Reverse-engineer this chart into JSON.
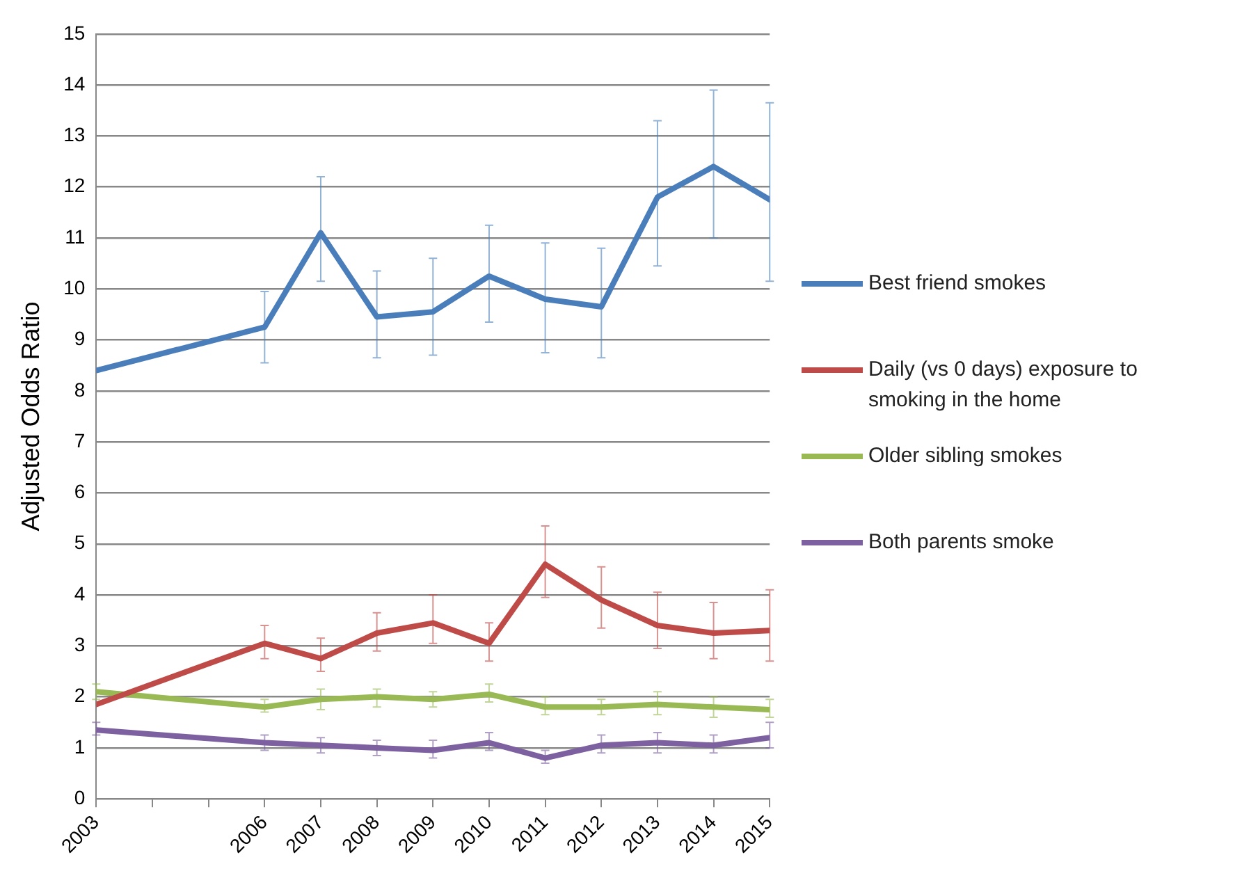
{
  "chart_data": {
    "type": "line",
    "ylabel": "Adjusted Odds Ratio",
    "x": [
      2003,
      2006,
      2007,
      2008,
      2009,
      2010,
      2011,
      2012,
      2013,
      2014,
      2015
    ],
    "xlim": [
      2003,
      2015
    ],
    "xticks": [
      2003,
      {
        "value": 2004,
        "label": null
      },
      {
        "value": 2005,
        "label": null
      },
      2006,
      2007,
      2008,
      2009,
      2010,
      2011,
      2012,
      2013,
      2014,
      2015
    ],
    "ylim": [
      0,
      15
    ],
    "yticks": [
      0,
      1,
      2,
      3,
      4,
      5,
      6,
      7,
      8,
      9,
      10,
      11,
      12,
      13,
      14,
      15
    ],
    "grid": "y",
    "legend": "right",
    "line_style": "solid",
    "series": [
      {
        "name": "Best friend smokes",
        "color": "#4a7ebb",
        "values": [
          8.4,
          9.25,
          11.1,
          9.45,
          9.55,
          10.25,
          9.8,
          9.65,
          11.8,
          12.4,
          11.75
        ],
        "errors": [
          null,
          [
            8.55,
            9.95
          ],
          [
            10.15,
            12.2
          ],
          [
            8.65,
            10.35
          ],
          [
            8.7,
            10.6
          ],
          [
            9.35,
            11.25
          ],
          [
            8.75,
            10.9
          ],
          [
            8.65,
            10.8
          ],
          [
            10.45,
            13.3
          ],
          [
            11.0,
            13.9
          ],
          [
            10.15,
            13.65
          ]
        ]
      },
      {
        "name": "Daily (vs 0 days) exposure to smoking in the home",
        "color": "#be4b48",
        "values": [
          1.85,
          3.05,
          2.75,
          3.25,
          3.45,
          3.05,
          4.6,
          3.9,
          3.4,
          3.25,
          3.3
        ],
        "errors": [
          null,
          [
            2.75,
            3.4
          ],
          [
            2.5,
            3.15
          ],
          [
            2.9,
            3.65
          ],
          [
            3.05,
            4.0
          ],
          [
            2.7,
            3.45
          ],
          [
            3.95,
            5.35
          ],
          [
            3.35,
            4.55
          ],
          [
            2.95,
            4.05
          ],
          [
            2.75,
            3.85
          ],
          [
            2.7,
            4.1
          ]
        ]
      },
      {
        "name": "Older sibling smokes",
        "color": "#98b954",
        "values": [
          2.1,
          1.8,
          1.95,
          2.0,
          1.95,
          2.05,
          1.8,
          1.8,
          1.85,
          1.8,
          1.75
        ],
        "errors": [
          [
            1.95,
            2.25
          ],
          [
            1.7,
            1.95
          ],
          [
            1.75,
            2.15
          ],
          [
            1.8,
            2.15
          ],
          [
            1.8,
            2.1
          ],
          [
            1.9,
            2.25
          ],
          [
            1.65,
            2.0
          ],
          [
            1.65,
            1.95
          ],
          [
            1.65,
            2.1
          ],
          [
            1.6,
            2.0
          ],
          [
            1.6,
            1.95
          ]
        ]
      },
      {
        "name": "Both parents smoke",
        "color": "#7d60a0",
        "values": [
          1.35,
          1.1,
          1.05,
          1.0,
          0.95,
          1.1,
          0.8,
          1.05,
          1.1,
          1.05,
          1.2
        ],
        "errors": [
          [
            1.25,
            1.5
          ],
          [
            0.95,
            1.25
          ],
          [
            0.9,
            1.2
          ],
          [
            0.85,
            1.15
          ],
          [
            0.8,
            1.15
          ],
          [
            0.95,
            1.3
          ],
          [
            0.7,
            0.95
          ],
          [
            0.9,
            1.25
          ],
          [
            0.9,
            1.3
          ],
          [
            0.9,
            1.25
          ],
          [
            1.0,
            1.5
          ]
        ]
      }
    ]
  }
}
